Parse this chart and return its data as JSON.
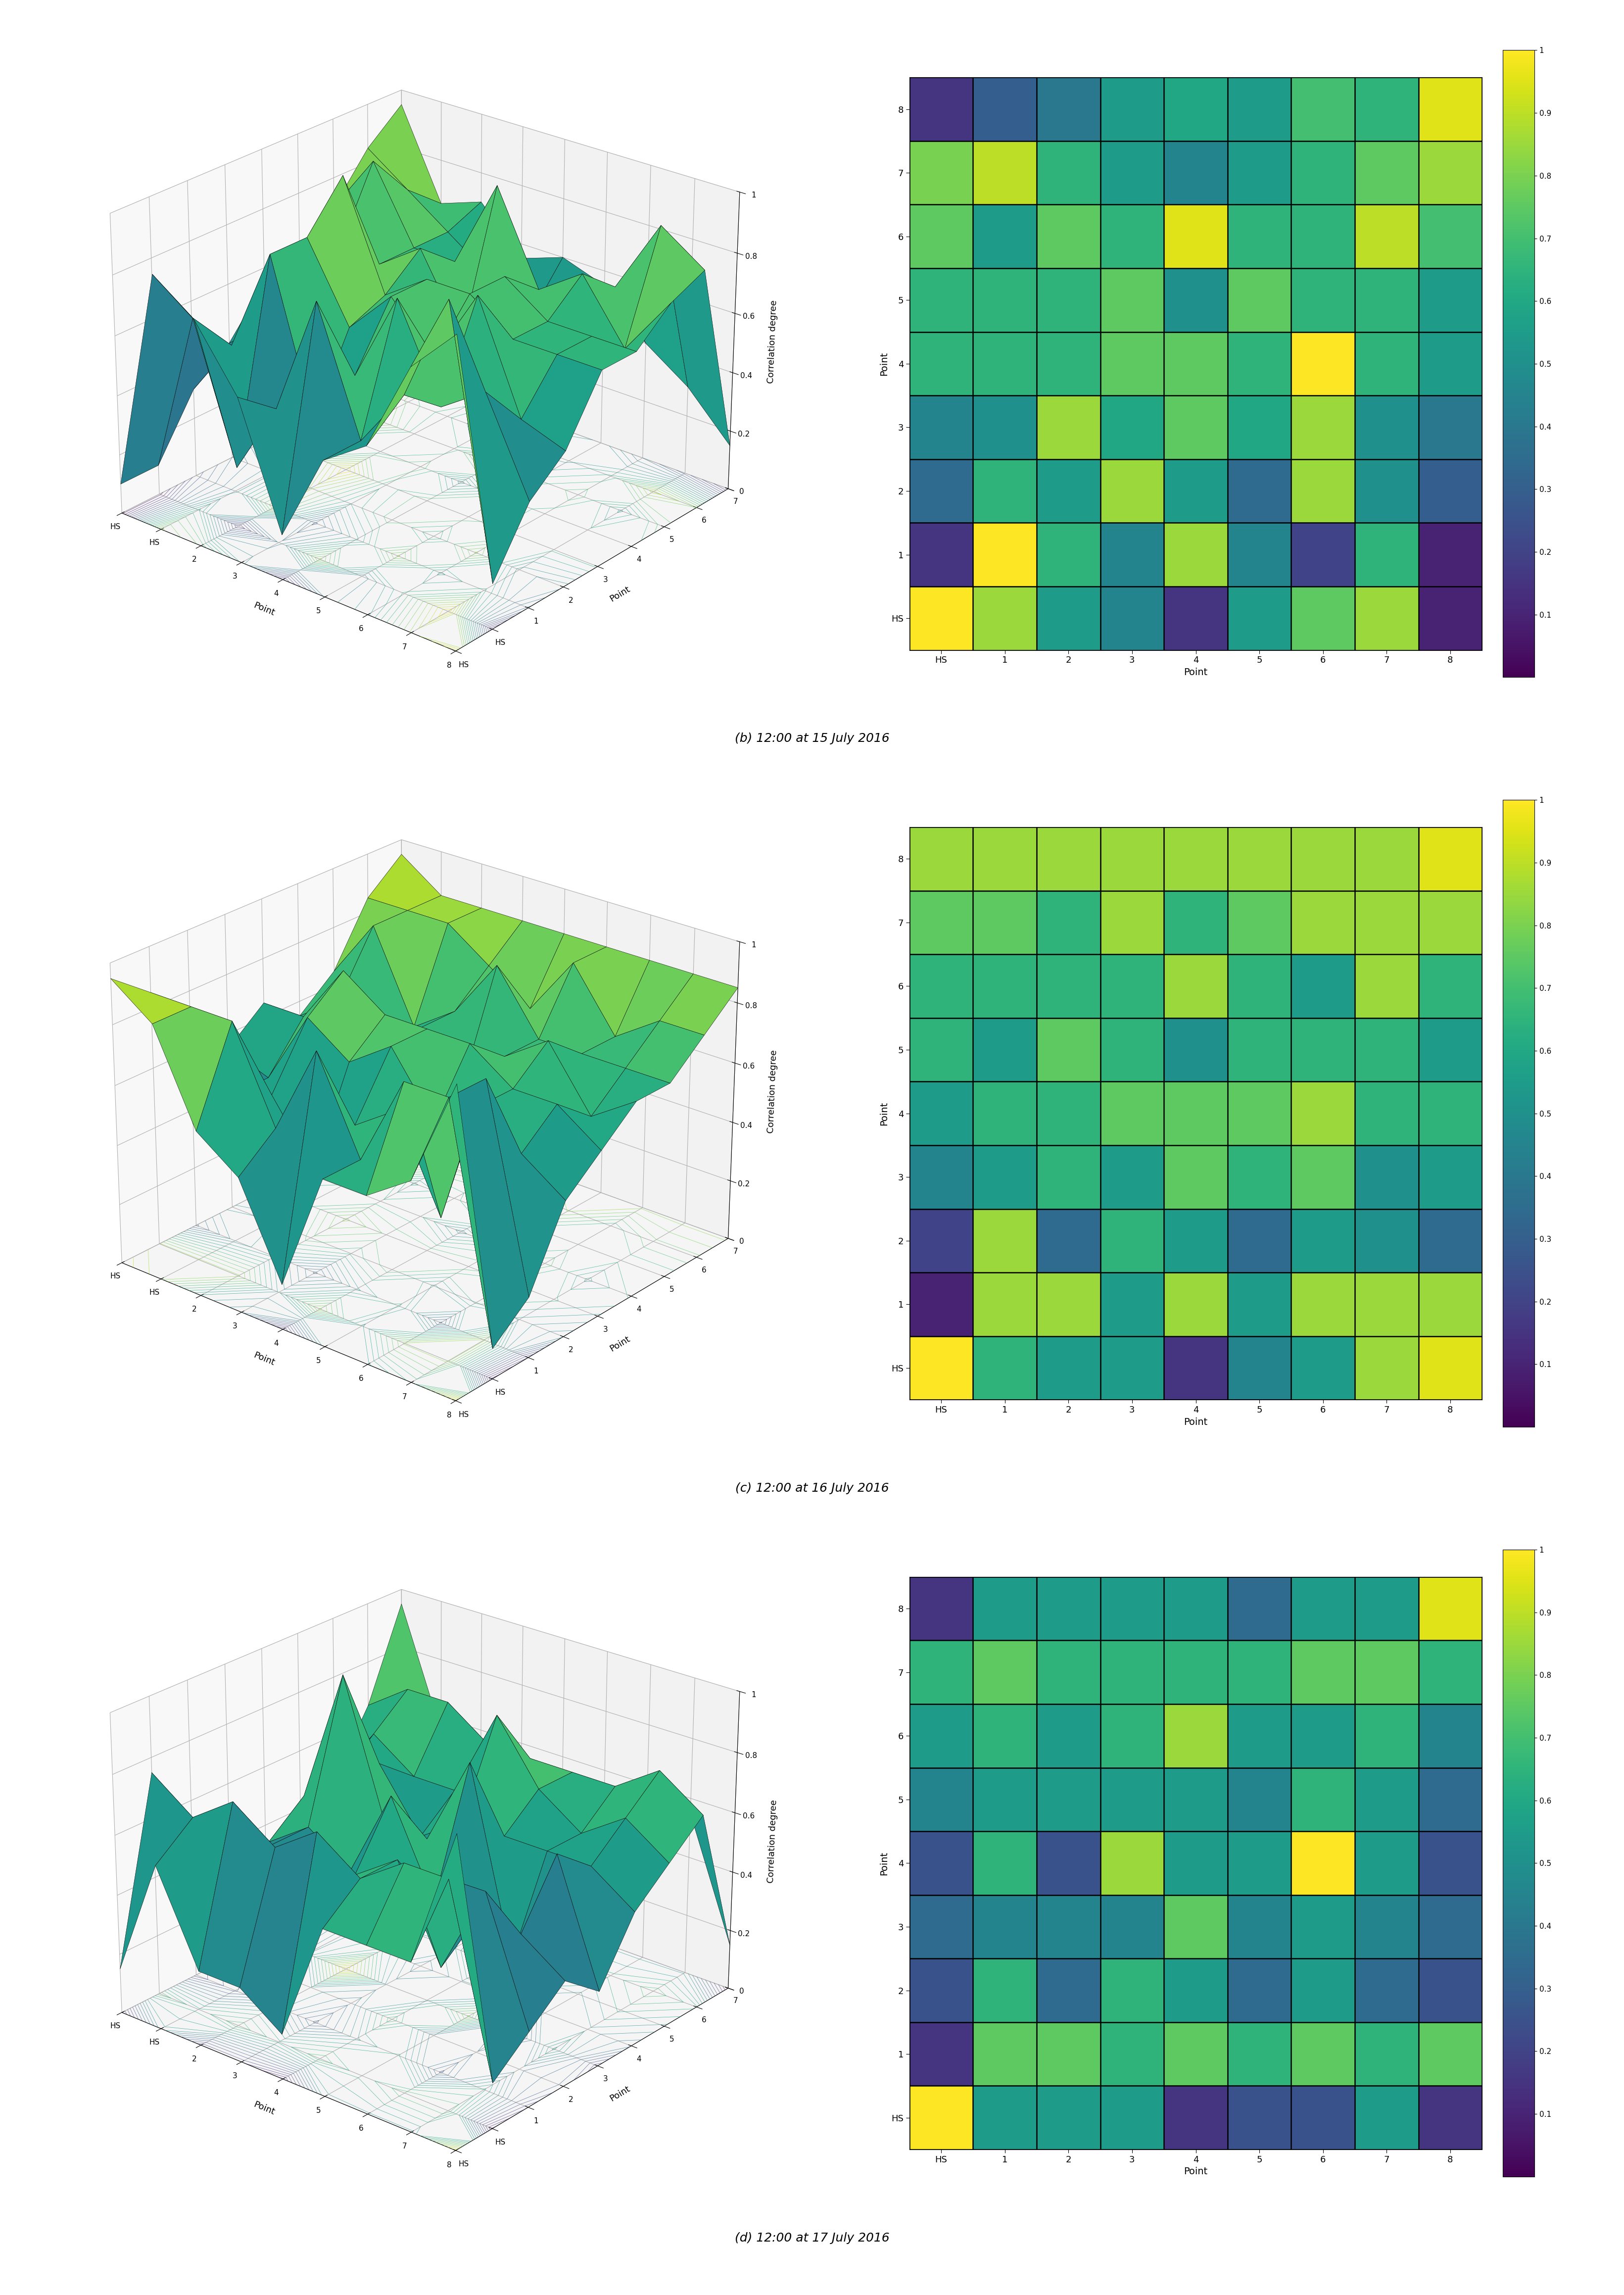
{
  "panels": [
    {
      "label": "(b) 12:00 at 15 July 2016",
      "heatmap": [
        [
          1.0,
          0.85,
          0.55,
          0.45,
          0.15,
          0.55,
          0.75,
          0.85,
          0.1
        ],
        [
          0.15,
          1.0,
          0.65,
          0.45,
          0.85,
          0.45,
          0.2,
          0.65,
          0.1
        ],
        [
          0.35,
          0.65,
          0.55,
          0.85,
          0.55,
          0.35,
          0.85,
          0.5,
          0.3
        ],
        [
          0.45,
          0.5,
          0.85,
          0.6,
          0.75,
          0.6,
          0.85,
          0.5,
          0.4
        ],
        [
          0.65,
          0.65,
          0.65,
          0.75,
          0.75,
          0.65,
          1.0,
          0.65,
          0.55
        ],
        [
          0.65,
          0.65,
          0.65,
          0.75,
          0.5,
          0.75,
          0.65,
          0.65,
          0.55
        ],
        [
          0.75,
          0.55,
          0.75,
          0.65,
          0.95,
          0.65,
          0.65,
          0.9,
          0.7
        ],
        [
          0.8,
          0.9,
          0.65,
          0.55,
          0.45,
          0.55,
          0.65,
          0.75,
          0.85
        ],
        [
          0.15,
          0.3,
          0.4,
          0.55,
          0.6,
          0.55,
          0.7,
          0.65,
          0.95
        ]
      ]
    },
    {
      "label": "(c) 12:00 at 16 July 2016",
      "heatmap": [
        [
          1.0,
          0.65,
          0.55,
          0.55,
          0.15,
          0.45,
          0.55,
          0.85,
          0.95
        ],
        [
          0.1,
          0.85,
          0.85,
          0.55,
          0.85,
          0.55,
          0.85,
          0.85,
          0.85
        ],
        [
          0.2,
          0.85,
          0.35,
          0.65,
          0.55,
          0.35,
          0.55,
          0.5,
          0.35
        ],
        [
          0.45,
          0.55,
          0.65,
          0.55,
          0.75,
          0.65,
          0.75,
          0.5,
          0.55
        ],
        [
          0.55,
          0.65,
          0.65,
          0.75,
          0.75,
          0.75,
          0.85,
          0.65,
          0.65
        ],
        [
          0.65,
          0.55,
          0.75,
          0.65,
          0.5,
          0.65,
          0.65,
          0.65,
          0.55
        ],
        [
          0.65,
          0.65,
          0.65,
          0.65,
          0.85,
          0.65,
          0.55,
          0.85,
          0.65
        ],
        [
          0.75,
          0.75,
          0.65,
          0.85,
          0.65,
          0.75,
          0.85,
          0.85,
          0.85
        ],
        [
          0.85,
          0.85,
          0.85,
          0.85,
          0.85,
          0.85,
          0.85,
          0.85,
          0.95
        ]
      ]
    },
    {
      "label": "(d) 12:00 at 17 July 2016",
      "heatmap": [
        [
          1.0,
          0.55,
          0.55,
          0.55,
          0.15,
          0.25,
          0.25,
          0.55,
          0.15
        ],
        [
          0.15,
          0.75,
          0.75,
          0.65,
          0.75,
          0.65,
          0.75,
          0.65,
          0.75
        ],
        [
          0.25,
          0.65,
          0.35,
          0.65,
          0.55,
          0.35,
          0.55,
          0.35,
          0.25
        ],
        [
          0.35,
          0.45,
          0.45,
          0.45,
          0.75,
          0.45,
          0.55,
          0.45,
          0.35
        ],
        [
          0.25,
          0.65,
          0.25,
          0.85,
          0.55,
          0.55,
          1.0,
          0.55,
          0.25
        ],
        [
          0.45,
          0.55,
          0.55,
          0.55,
          0.55,
          0.45,
          0.65,
          0.55,
          0.35
        ],
        [
          0.55,
          0.65,
          0.55,
          0.65,
          0.85,
          0.55,
          0.55,
          0.65,
          0.45
        ],
        [
          0.65,
          0.75,
          0.65,
          0.65,
          0.65,
          0.65,
          0.75,
          0.75,
          0.65
        ],
        [
          0.15,
          0.55,
          0.55,
          0.55,
          0.55,
          0.35,
          0.55,
          0.55,
          0.95
        ]
      ]
    }
  ],
  "cmap": "viridis",
  "vmin": 0.0,
  "vmax": 1.0,
  "tick_labels": [
    "HS",
    "1",
    "2",
    "3",
    "4",
    "5",
    "6",
    "7",
    "8"
  ],
  "ylabel_heatmap": "Point",
  "xlabel_heatmap": "Point",
  "zlabel_3d": "Correlation degree",
  "xlabel_3d": "Point",
  "ylabel_3d": "Point",
  "background_color": "#ffffff",
  "elev": 25,
  "azim": -50,
  "x3d_ticklabels": [
    "8",
    "7",
    "6",
    "5",
    "4",
    "3",
    "2",
    "HS",
    "HS"
  ],
  "y3d_ticklabels": [
    "HS",
    "HS",
    "1",
    "2",
    "3",
    "4",
    "5",
    "6",
    "7"
  ],
  "z3d_ticklabels": [
    "0",
    "0.2",
    "0.4",
    "0.6",
    "0.8",
    "1"
  ],
  "colorbar_ticks": [
    0.1,
    0.2,
    0.3,
    0.4,
    0.5,
    0.6,
    0.7,
    0.8,
    0.9,
    1.0
  ],
  "colorbar_ticklabels": [
    "0.1",
    "0.2",
    "0.3",
    "0.4",
    "0.5",
    "0.6",
    "0.7",
    "0.8",
    "0.9",
    "1"
  ]
}
